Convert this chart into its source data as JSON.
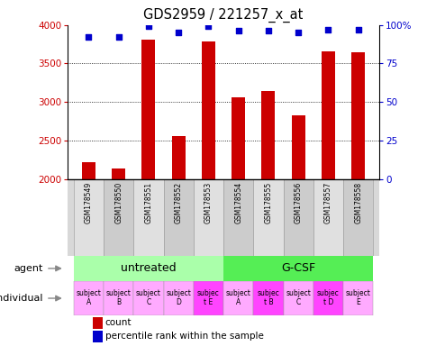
{
  "title": "GDS2959 / 221257_x_at",
  "samples": [
    "GSM178549",
    "GSM178550",
    "GSM178551",
    "GSM178552",
    "GSM178553",
    "GSM178554",
    "GSM178555",
    "GSM178556",
    "GSM178557",
    "GSM178558"
  ],
  "counts": [
    2220,
    2140,
    3810,
    2560,
    3780,
    3060,
    3140,
    2830,
    3660,
    3650
  ],
  "percentile_ranks": [
    92,
    92,
    99,
    95,
    99,
    96,
    96,
    95,
    97,
    97
  ],
  "ymin": 2000,
  "ymax": 4000,
  "yticks": [
    2000,
    2500,
    3000,
    3500,
    4000
  ],
  "right_yticks": [
    0,
    25,
    50,
    75,
    100
  ],
  "right_yticklabels": [
    "0",
    "25",
    "50",
    "75",
    "100%"
  ],
  "bar_color": "#cc0000",
  "dot_color": "#0000cc",
  "agent_groups": [
    {
      "label": "untreated",
      "start": 0,
      "end": 5,
      "color": "#aaffaa"
    },
    {
      "label": "G-CSF",
      "start": 5,
      "end": 10,
      "color": "#55ee55"
    }
  ],
  "individual_labels": [
    "subject\nA",
    "subject\nB",
    "subject\nC",
    "subject\nD",
    "subjec\nt E",
    "subject\nA",
    "subjec\nt B",
    "subject\nC",
    "subjec\nt D",
    "subject\nE"
  ],
  "individual_highlight": [
    4,
    6,
    8
  ],
  "individual_color_normal": "#ffaaff",
  "individual_color_highlight": "#ff44ff",
  "tick_label_color_left": "#cc0000",
  "tick_label_color_right": "#0000cc",
  "legend_count_color": "#cc0000",
  "legend_pct_color": "#0000cc",
  "gsm_col_colors": [
    "#e0e0e0",
    "#cccccc"
  ]
}
